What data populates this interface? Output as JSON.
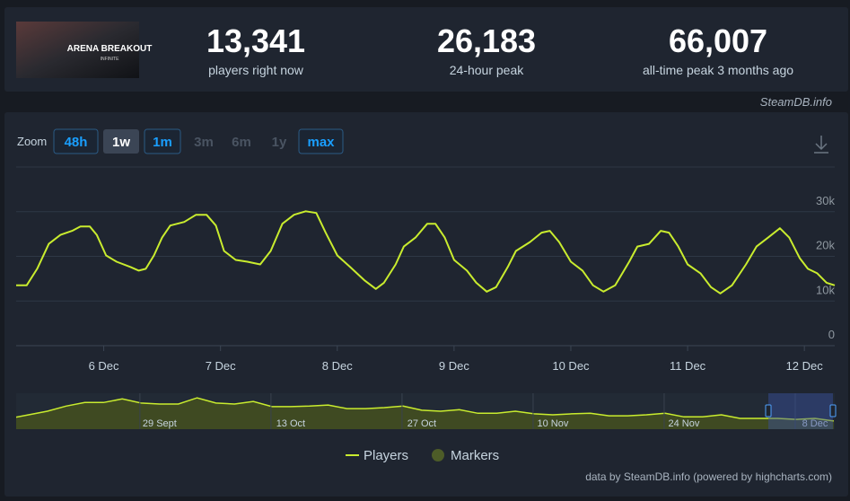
{
  "header": {
    "logo": {
      "title": "ARENA BREAKOUT",
      "subtitle": "INFINITE"
    },
    "stats": [
      {
        "value": "13,341",
        "label": "players right now"
      },
      {
        "value": "26,183",
        "label": "24-hour peak"
      },
      {
        "value": "66,007",
        "label": "all-time peak 3 months ago"
      }
    ],
    "source": "SteamDB.info"
  },
  "zoom": {
    "label": "Zoom",
    "buttons": [
      {
        "text": "48h",
        "state": "enabled"
      },
      {
        "text": "1w",
        "state": "active"
      },
      {
        "text": "1m",
        "state": "enabled"
      },
      {
        "text": "3m",
        "state": "disabled"
      },
      {
        "text": "6m",
        "state": "disabled"
      },
      {
        "text": "1y",
        "state": "disabled"
      },
      {
        "text": "max",
        "state": "enabled"
      }
    ]
  },
  "chart_data": [
    {
      "type": "line",
      "x": [
        5.25,
        5.34,
        5.43,
        5.53,
        5.63,
        5.73,
        5.8,
        5.88,
        5.94,
        6.02,
        6.11,
        6.23,
        6.3,
        6.36,
        6.43,
        6.5,
        6.57,
        6.69,
        6.79,
        6.88,
        6.96,
        7.03,
        7.13,
        7.23,
        7.34,
        7.43,
        7.53,
        7.63,
        7.73,
        7.82,
        7.9,
        8.0,
        8.11,
        8.23,
        8.33,
        8.4,
        8.5,
        8.57,
        8.67,
        8.77,
        8.84,
        8.92,
        9.0,
        9.11,
        9.19,
        9.28,
        9.36,
        9.46,
        9.53,
        9.65,
        9.75,
        9.82,
        9.9,
        10.0,
        10.1,
        10.19,
        10.28,
        10.38,
        10.5,
        10.57,
        10.67,
        10.77,
        10.84,
        10.92,
        11.0,
        11.11,
        11.2,
        11.28,
        11.38,
        11.5,
        11.59,
        11.69,
        11.79,
        11.87,
        11.96,
        12.03,
        12.11,
        12.19,
        12.26
      ],
      "series": [
        {
          "name": "Players",
          "color": "#c9ec2e",
          "values": [
            13500,
            13500,
            17200,
            22800,
            24800,
            25700,
            26700,
            26700,
            24800,
            20200,
            18800,
            17600,
            16800,
            17200,
            20200,
            24200,
            26900,
            27700,
            29300,
            29300,
            26900,
            21200,
            19200,
            18800,
            18200,
            21200,
            27300,
            29300,
            30100,
            29700,
            25300,
            20200,
            17600,
            14700,
            12700,
            14100,
            18200,
            22200,
            24200,
            27300,
            27300,
            24200,
            19200,
            16800,
            14100,
            12100,
            13100,
            17600,
            21200,
            23200,
            25300,
            25700,
            23200,
            18800,
            16800,
            13500,
            12100,
            13500,
            18800,
            22200,
            22800,
            25700,
            25300,
            22200,
            18200,
            16200,
            13100,
            11700,
            13500,
            18200,
            22200,
            24200,
            26300,
            24200,
            19600,
            17200,
            16200,
            14100,
            13500
          ]
        }
      ],
      "legend_extra": {
        "name": "Markers",
        "color": "#4d5c28"
      },
      "xlim": [
        5.25,
        12.26
      ],
      "xticks": [
        {
          "value": 6,
          "label": "6 Dec"
        },
        {
          "value": 7,
          "label": "7 Dec"
        },
        {
          "value": 8,
          "label": "8 Dec"
        },
        {
          "value": 9,
          "label": "9 Dec"
        },
        {
          "value": 10,
          "label": "10 Dec"
        },
        {
          "value": 11,
          "label": "11 Dec"
        },
        {
          "value": 12,
          "label": "12 Dec"
        }
      ],
      "ylim": [
        0,
        40000
      ],
      "yticks": [
        0,
        {
          "value": 10000,
          "label": "10k"
        },
        {
          "value": 20000,
          "label": "20k"
        },
        {
          "value": 30000,
          "label": "30k"
        }
      ],
      "grid": true
    },
    {
      "type": "area",
      "color": "#c9ec2e",
      "fill": "#3f4a22",
      "categories": [
        null,
        null,
        null,
        null,
        null,
        null,
        null,
        null,
        "29 Sept",
        null,
        null,
        null,
        null,
        null,
        null,
        "13 Oct",
        null,
        null,
        null,
        null,
        null,
        null,
        "27 Oct",
        null,
        null,
        null,
        null,
        null,
        null,
        "10 Nov",
        null,
        null,
        null,
        null,
        null,
        null,
        "24 Nov",
        null,
        null,
        null,
        null,
        null,
        null,
        "8 Dec",
        null
      ],
      "values": [
        21000,
        28000,
        35000,
        45000,
        52000,
        52000,
        59000,
        51000,
        49000,
        49000,
        61000,
        51000,
        49000,
        54000,
        44000,
        44000,
        45000,
        47000,
        40000,
        40000,
        42000,
        45000,
        37000,
        35000,
        38000,
        31000,
        31000,
        35000,
        30000,
        28000,
        30000,
        31000,
        26000,
        26000,
        28000,
        31000,
        24000,
        24000,
        28000,
        21000,
        21000,
        21000,
        19000,
        21000,
        16000
      ],
      "ylim": [
        0,
        70000
      ]
    }
  ],
  "credits": "data by SteamDB.info (powered by highcharts.com)"
}
